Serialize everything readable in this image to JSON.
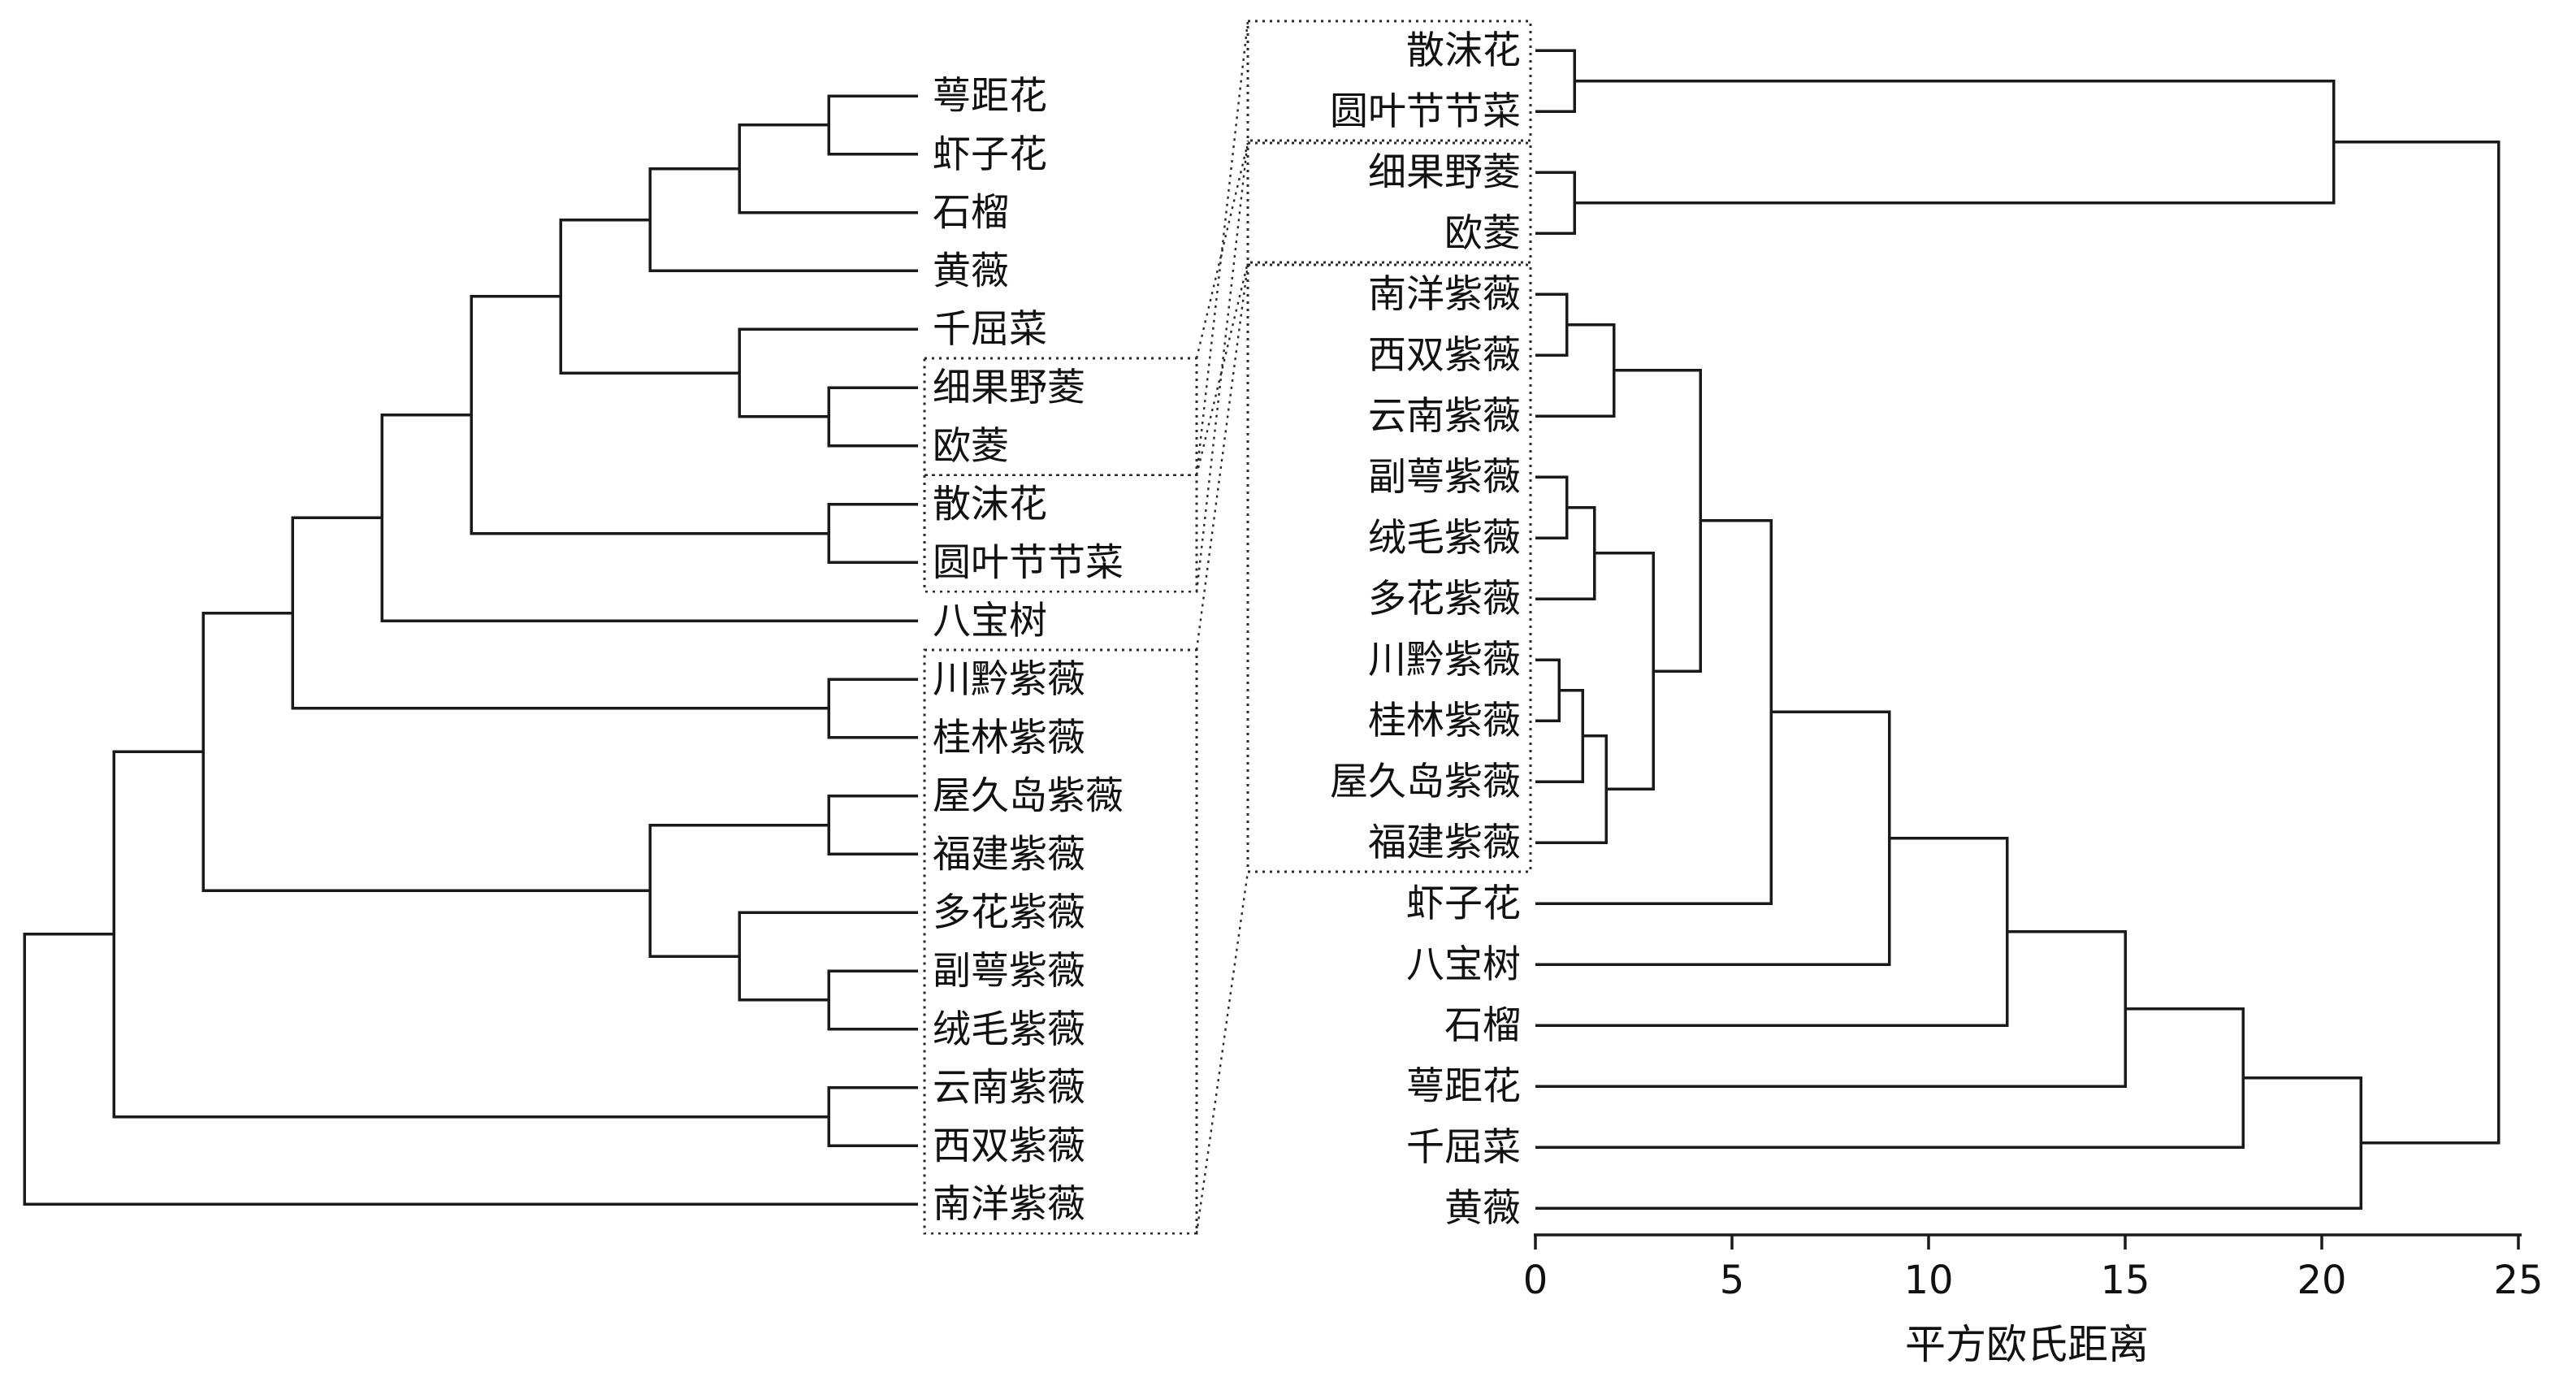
{
  "axis": {
    "label": "平方欧氏距离",
    "ticks": [
      "0",
      "5",
      "10",
      "15",
      "20",
      "25"
    ],
    "min": 0,
    "max": 25
  },
  "chart_data": [
    {
      "type": "dendrogram",
      "panel": "left",
      "style": "cladogram, no distance scale, right-facing leaves",
      "leaf_order": [
        "萼距花",
        "虾子花",
        "石榴",
        "黄薇",
        "千屈菜",
        "细果野菱",
        "欧菱",
        "散沫花",
        "圆叶节节菜",
        "八宝树",
        "川黔紫薇",
        "桂林紫薇",
        "屋久岛紫薇",
        "福建紫薇",
        "多花紫薇",
        "副萼紫薇",
        "绒毛紫薇",
        "云南紫薇",
        "西双紫薇",
        "南洋紫薇"
      ],
      "tree": [
        [
          [
            [
              [
                [
                  [
                    [
                      [
                        [
                          "萼距花",
                          "虾子花"
                        ],
                        "石榴"
                      ],
                      "黄薇"
                    ],
                    [
                      "千屈菜",
                      [
                        "细果野菱",
                        "欧菱"
                      ]
                    ]
                  ],
                  [
                    "散沫花",
                    "圆叶节节菜"
                  ]
                ],
                "八宝树"
              ],
              [
                "川黔紫薇",
                "桂林紫薇"
              ]
            ],
            [
              [
                "屋久岛紫薇",
                "福建紫薇"
              ],
              [
                "多花紫薇",
                [
                  "副萼紫薇",
                  "绒毛紫薇"
                ]
              ]
            ]
          ],
          [
            "云南紫薇",
            "西双紫薇"
          ]
        ],
        "南洋紫薇"
      ]
    },
    {
      "type": "dendrogram",
      "panel": "right",
      "xlabel": "平方欧氏距离",
      "xlim": [
        0,
        25
      ],
      "x_ticks": [
        0,
        5,
        10,
        15,
        20,
        25
      ],
      "leaf_order": [
        "散沫花",
        "圆叶节节菜",
        "细果野菱",
        "欧菱",
        "南洋紫薇",
        "西双紫薇",
        "云南紫薇",
        "副萼紫薇",
        "绒毛紫薇",
        "多花紫薇",
        "川黔紫薇",
        "桂林紫薇",
        "屋久岛紫薇",
        "福建紫薇",
        "虾子花",
        "八宝树",
        "石榴",
        "萼距花",
        "千屈菜",
        "黄薇"
      ],
      "merges": {
        "d": 24.5,
        "c": [
          {
            "d": 20.3,
            "c": [
              {
                "d": 1,
                "c": [
                  "散沫花",
                  "圆叶节节菜"
                ]
              },
              {
                "d": 1,
                "c": [
                  "细果野菱",
                  "欧菱"
                ]
              }
            ]
          },
          {
            "d": 21,
            "c": [
              {
                "d": 18,
                "c": [
                  {
                    "d": 15,
                    "c": [
                      {
                        "d": 12,
                        "c": [
                          {
                            "d": 9,
                            "c": [
                              {
                                "d": 6,
                                "c": [
                                  {
                                    "d": 4.2,
                                    "c": [
                                      {
                                        "d": 2,
                                        "c": [
                                          {
                                            "d": 0.8,
                                            "c": [
                                              "南洋紫薇",
                                              "西双紫薇"
                                            ]
                                          },
                                          "云南紫薇"
                                        ]
                                      },
                                      {
                                        "d": 3,
                                        "c": [
                                          {
                                            "d": 1.5,
                                            "c": [
                                              {
                                                "d": 0.8,
                                                "c": [
                                                  "副萼紫薇",
                                                  "绒毛紫薇"
                                                ]
                                              },
                                              "多花紫薇"
                                            ]
                                          },
                                          {
                                            "d": 1.8,
                                            "c": [
                                              {
                                                "d": 1.2,
                                                "c": [
                                                  {
                                                    "d": 0.6,
                                                    "c": [
                                                      "川黔紫薇",
                                                      "桂林紫薇"
                                                    ]
                                                  },
                                                  "屋久岛紫薇"
                                                ]
                                              },
                                              "福建紫薇"
                                            ]
                                          }
                                        ]
                                      }
                                    ]
                                  },
                                  "虾子花"
                                ]
                              },
                              "八宝树"
                            ]
                          },
                          "石榴"
                        ]
                      },
                      "萼距花"
                    ]
                  },
                  "千屈菜"
                ]
              },
              "黄薇"
            ]
          }
        ]
      }
    }
  ],
  "highlight_groups": [
    {
      "id": "group1",
      "members": [
        "散沫花",
        "圆叶节节菜"
      ],
      "left_rows": [
        7,
        8
      ],
      "right_rows": [
        0,
        1
      ]
    },
    {
      "id": "group2",
      "members": [
        "细果野菱",
        "欧菱"
      ],
      "left_rows": [
        5,
        6
      ],
      "right_rows": [
        2,
        3
      ]
    },
    {
      "id": "group3",
      "members": [
        "南洋紫薇",
        "西双紫薇",
        "云南紫薇",
        "副萼紫薇",
        "绒毛紫薇",
        "多花紫薇",
        "川黔紫薇",
        "桂林紫薇",
        "屋久岛紫薇",
        "福建紫薇"
      ],
      "left_rows": [
        10,
        19
      ],
      "right_rows": [
        4,
        13
      ]
    }
  ]
}
